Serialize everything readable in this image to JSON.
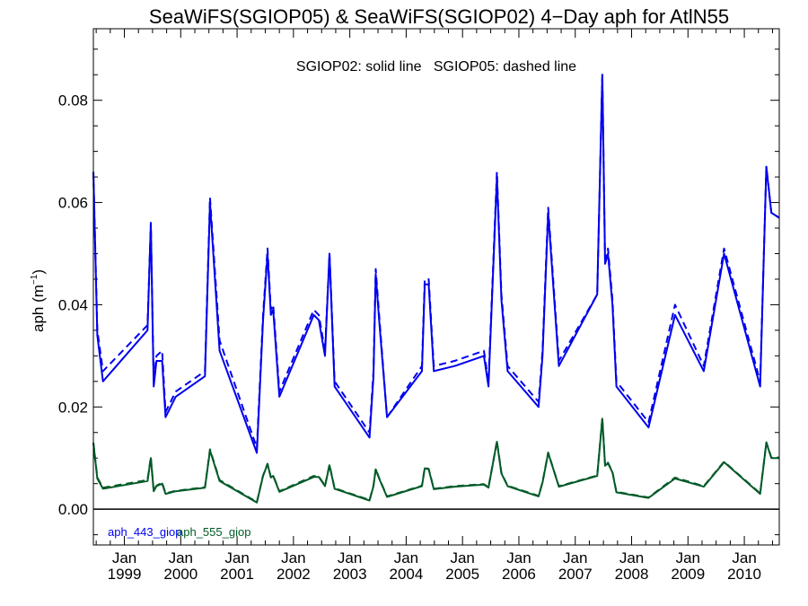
{
  "chart_data": {
    "type": "line",
    "title": "SeaWiFS(SGIOP05) & SeaWiFS(SGIOP02) 4−Day aph for AtlN55",
    "annotation": "SGIOP02: solid line   SGIOP05: dashed line",
    "ylabel_base": "aph (m",
    "ylabel_sup": "−1",
    "ylabel_close": ")",
    "ylim": [
      -0.007,
      0.094
    ],
    "yticks": [
      0.0,
      0.02,
      0.04,
      0.06,
      0.08
    ],
    "ytick_labels": [
      "0.00",
      "0.02",
      "0.04",
      "0.06",
      "0.08"
    ],
    "xlim": [
      1998.45,
      2010.62
    ],
    "xticks": [
      1999.0,
      2000.0,
      2001.0,
      2002.0,
      2003.0,
      2004.0,
      2005.0,
      2006.0,
      2007.0,
      2008.0,
      2009.0,
      2010.0
    ],
    "xtick_month": "Jan",
    "xtick_years": [
      "1999",
      "2000",
      "2001",
      "2002",
      "2003",
      "2004",
      "2005",
      "2006",
      "2007",
      "2008",
      "2009",
      "2010"
    ],
    "zero_line": true,
    "grid": false,
    "series": [
      {
        "name": "aph_443_giop",
        "color": "#0000ee",
        "style": "solid",
        "x": [
          1998.45,
          1998.52,
          1998.62,
          1999.41,
          1999.47,
          1999.52,
          1999.57,
          1999.67,
          1999.73,
          1999.91,
          2000.43,
          2000.52,
          2000.69,
          2001.35,
          2001.46,
          2001.54,
          2001.6,
          2001.64,
          2001.75,
          2002.36,
          2002.45,
          2002.56,
          2002.64,
          2002.73,
          2003.35,
          2003.42,
          2003.46,
          2003.52,
          2003.66,
          2004.28,
          2004.33,
          2004.4,
          2004.49,
          2004.86,
          2005.38,
          2005.46,
          2005.61,
          2005.69,
          2005.8,
          2006.35,
          2006.42,
          2006.52,
          2006.71,
          2007.39,
          2007.48,
          2007.53,
          2007.58,
          2007.66,
          2007.73,
          2008.3,
          2008.77,
          2009.28,
          2009.64,
          2010.28,
          2010.39,
          2010.48,
          2010.62
        ],
        "y": [
          0.066,
          0.034,
          0.025,
          0.035,
          0.056,
          0.024,
          0.029,
          0.029,
          0.018,
          0.022,
          0.026,
          0.06,
          0.031,
          0.011,
          0.037,
          0.05,
          0.038,
          0.039,
          0.022,
          0.038,
          0.037,
          0.03,
          0.05,
          0.024,
          0.014,
          0.026,
          0.046,
          0.037,
          0.018,
          0.027,
          0.044,
          0.044,
          0.027,
          0.028,
          0.03,
          0.024,
          0.065,
          0.041,
          0.027,
          0.02,
          0.03,
          0.058,
          0.028,
          0.042,
          0.085,
          0.048,
          0.05,
          0.04,
          0.024,
          0.016,
          0.038,
          0.027,
          0.05,
          0.024,
          0.067,
          0.058,
          0.057
        ]
      },
      {
        "name": "aph_443_giop SGIOP05",
        "color": "#0000ee",
        "style": "dashed",
        "x": [
          1998.45,
          1998.52,
          1998.62,
          1999.41,
          1999.47,
          1999.52,
          1999.57,
          1999.67,
          1999.73,
          1999.91,
          2000.43,
          2000.52,
          2000.69,
          2001.35,
          2001.46,
          2001.54,
          2001.6,
          2001.64,
          2001.75,
          2002.36,
          2002.45,
          2002.56,
          2002.64,
          2002.73,
          2003.35,
          2003.42,
          2003.46,
          2003.52,
          2003.66,
          2004.28,
          2004.33,
          2004.4,
          2004.49,
          2004.86,
          2005.38,
          2005.46,
          2005.61,
          2005.69,
          2005.8,
          2006.35,
          2006.42,
          2006.52,
          2006.71,
          2007.39,
          2007.48,
          2007.53,
          2007.58,
          2007.66,
          2007.73,
          2008.3,
          2008.77,
          2009.28,
          2009.64,
          2010.28,
          2010.39,
          2010.48,
          2010.62
        ],
        "y": [
          0.066,
          0.035,
          0.027,
          0.036,
          0.056,
          0.025,
          0.03,
          0.031,
          0.019,
          0.023,
          0.027,
          0.061,
          0.033,
          0.012,
          0.038,
          0.051,
          0.039,
          0.04,
          0.023,
          0.039,
          0.038,
          0.031,
          0.05,
          0.025,
          0.015,
          0.027,
          0.047,
          0.038,
          0.018,
          0.028,
          0.045,
          0.045,
          0.028,
          0.029,
          0.031,
          0.025,
          0.066,
          0.042,
          0.028,
          0.021,
          0.031,
          0.059,
          0.029,
          0.042,
          0.085,
          0.048,
          0.051,
          0.041,
          0.025,
          0.017,
          0.04,
          0.028,
          0.051,
          0.025,
          0.067,
          0.058,
          0.057
        ]
      },
      {
        "name": "aph_555_giop",
        "color": "#005a28",
        "style": "solid",
        "x": [
          1998.45,
          1998.52,
          1998.62,
          1999.41,
          1999.47,
          1999.52,
          1999.57,
          1999.67,
          1999.73,
          1999.91,
          2000.43,
          2000.52,
          2000.69,
          2001.35,
          2001.46,
          2001.54,
          2001.6,
          2001.64,
          2001.75,
          2002.36,
          2002.45,
          2002.56,
          2002.64,
          2002.73,
          2003.35,
          2003.42,
          2003.46,
          2003.52,
          2003.66,
          2004.28,
          2004.33,
          2004.4,
          2004.49,
          2004.86,
          2005.38,
          2005.46,
          2005.61,
          2005.69,
          2005.8,
          2006.35,
          2006.42,
          2006.52,
          2006.71,
          2007.39,
          2007.48,
          2007.53,
          2007.58,
          2007.66,
          2007.73,
          2008.3,
          2008.77,
          2009.28,
          2009.64,
          2010.28,
          2010.39,
          2010.48,
          2010.62
        ],
        "y": [
          0.013,
          0.006,
          0.004,
          0.0055,
          0.01,
          0.0035,
          0.0045,
          0.005,
          0.003,
          0.0035,
          0.0042,
          0.0115,
          0.0055,
          0.0013,
          0.0065,
          0.0088,
          0.0062,
          0.0065,
          0.0034,
          0.0063,
          0.0063,
          0.0045,
          0.0086,
          0.004,
          0.0017,
          0.0045,
          0.0078,
          0.006,
          0.0024,
          0.0045,
          0.008,
          0.0078,
          0.0039,
          0.0044,
          0.0048,
          0.0042,
          0.0132,
          0.007,
          0.0045,
          0.0025,
          0.0052,
          0.011,
          0.0044,
          0.0065,
          0.0177,
          0.0085,
          0.009,
          0.0072,
          0.0033,
          0.0022,
          0.006,
          0.0044,
          0.0092,
          0.003,
          0.013,
          0.01,
          0.01
        ]
      },
      {
        "name": "aph_555_giop SGIOP05",
        "color": "#005a28",
        "style": "dashed",
        "x": [
          1998.45,
          1998.52,
          1998.62,
          1999.41,
          1999.47,
          1999.52,
          1999.57,
          1999.67,
          1999.73,
          1999.91,
          2000.43,
          2000.52,
          2000.69,
          2001.35,
          2001.46,
          2001.54,
          2001.6,
          2001.64,
          2001.75,
          2002.36,
          2002.45,
          2002.56,
          2002.64,
          2002.73,
          2003.35,
          2003.42,
          2003.46,
          2003.52,
          2003.66,
          2004.28,
          2004.33,
          2004.4,
          2004.49,
          2004.86,
          2005.38,
          2005.46,
          2005.61,
          2005.69,
          2005.8,
          2006.35,
          2006.42,
          2006.52,
          2006.71,
          2007.39,
          2007.48,
          2007.53,
          2007.58,
          2007.66,
          2007.73,
          2008.3,
          2008.77,
          2009.28,
          2009.64,
          2010.28,
          2010.39,
          2010.48,
          2010.62
        ],
        "y": [
          0.013,
          0.0062,
          0.0042,
          0.0057,
          0.0102,
          0.0036,
          0.0046,
          0.0052,
          0.0031,
          0.0036,
          0.0043,
          0.0117,
          0.0057,
          0.0014,
          0.0066,
          0.0089,
          0.0063,
          0.0066,
          0.0035,
          0.0065,
          0.0064,
          0.0046,
          0.0087,
          0.0041,
          0.0018,
          0.0046,
          0.0079,
          0.0061,
          0.0025,
          0.0046,
          0.0081,
          0.0079,
          0.004,
          0.0045,
          0.0049,
          0.0043,
          0.0133,
          0.0071,
          0.0046,
          0.0026,
          0.0053,
          0.0111,
          0.0045,
          0.0066,
          0.0178,
          0.0086,
          0.0091,
          0.0073,
          0.0034,
          0.0023,
          0.0062,
          0.0045,
          0.0093,
          0.0031,
          0.0131,
          0.0101,
          0.0101
        ]
      }
    ],
    "legend": [
      {
        "label": "aph_443_giop",
        "color": "#0000ee"
      },
      {
        "label": "aph_555_giop",
        "color": "#005a28"
      }
    ]
  }
}
